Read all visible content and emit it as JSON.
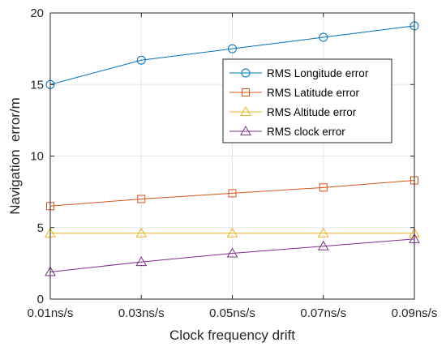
{
  "chart_data": {
    "type": "line",
    "xlabel": "Clock frequency drift",
    "ylabel": "Navigation  error/m",
    "categories": [
      "0.01ns/s",
      "0.03ns/s",
      "0.05ns/s",
      "0.07ns/s",
      "0.09ns/s"
    ],
    "ylim": [
      0,
      20
    ],
    "yticks": [
      "0",
      "5",
      "10",
      "15",
      "20"
    ],
    "grid": true,
    "legend_position": "top-right",
    "series": [
      {
        "name": "RMS Longitude error",
        "marker": "circle",
        "color": "#0072BD",
        "values": [
          15.0,
          16.7,
          17.5,
          18.3,
          19.1
        ]
      },
      {
        "name": "RMS Latitude error",
        "marker": "square",
        "color": "#D95319",
        "values": [
          6.5,
          7.0,
          7.4,
          7.8,
          8.3
        ]
      },
      {
        "name": "RMS Altitude error",
        "marker": "triangle",
        "color": "#EDB120",
        "values": [
          4.6,
          4.6,
          4.6,
          4.6,
          4.6
        ]
      },
      {
        "name": "RMS clock error",
        "marker": "triangle",
        "color": "#7E2F8E",
        "values": [
          1.9,
          2.6,
          3.2,
          3.7,
          4.2
        ]
      }
    ]
  }
}
